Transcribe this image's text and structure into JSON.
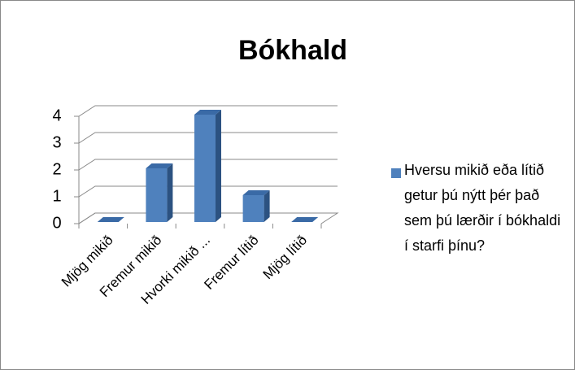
{
  "chart_data": {
    "type": "bar3d",
    "title": "Bókhald",
    "categories": [
      "Mjög mikið",
      "Fremur mikið",
      "Hvorki mikið ...",
      "Fremur lítið",
      "Mjög lítið"
    ],
    "series": [
      {
        "name": "Hversu mikið eða lítið getur þú nýtt þér það sem þú lærðir í bókhaldi í starfi þínu?",
        "color": "#4f81bd",
        "values": [
          0,
          2,
          4,
          1,
          0
        ]
      }
    ],
    "ylim": [
      0,
      4
    ],
    "yticks": [
      0,
      1,
      2,
      3,
      4
    ],
    "grid": true,
    "legend": "right"
  }
}
